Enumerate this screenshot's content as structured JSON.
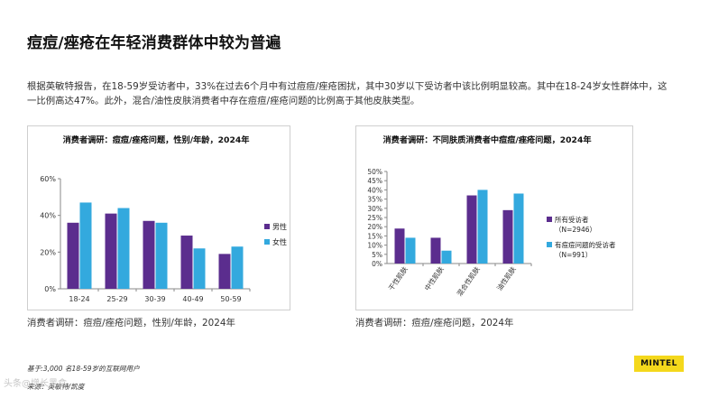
{
  "page": {
    "title": "痘痘/痤疮在年轻消费群体中较为普遍",
    "body": "根据英敏特报告，在18-59岁受访者中，33%在过去6个月中有过痘痘/痤疮困扰，其中30岁以下受访者中该比例明显较高。其中在18-24岁女性群体中，这一比例高达47%。此外，混合/油性皮肤消费者中存在痘痘/痤疮问题的比例高于其他皮肤类型。",
    "caption_left": "消费者调研：痘痘/痤疮问题，性别/年龄，2024年",
    "caption_right": "消费者调研：痘痘/痤疮问题，2024年",
    "base_note": "基于:3,000 名18-59岁的互联网用户",
    "source_note": "来源：英敏特/凯度",
    "logo_text": "MINTEL",
    "watermark": "头条@增长黑盒"
  },
  "colors": {
    "series_dark": "#5b2d8e",
    "series_light": "#33a9de",
    "logo_bg": "#f4d81c"
  },
  "chart_data": [
    {
      "type": "bar",
      "title": "消费者调研：痘痘/痤疮问题，性别/年龄，2024年",
      "categories": [
        "18-24",
        "25-29",
        "30-39",
        "40-49",
        "50-59"
      ],
      "series": [
        {
          "name": "男性",
          "values": [
            36,
            41,
            37,
            29,
            19
          ]
        },
        {
          "name": "女性",
          "values": [
            47,
            44,
            36,
            22,
            23
          ]
        }
      ],
      "yticks": [
        "0%",
        "20%",
        "40%",
        "60%"
      ],
      "ylim": [
        0,
        60
      ],
      "grid": false,
      "legend": "right"
    },
    {
      "type": "bar",
      "title": "消费者调研：不同肤质消费者中痘痘/痤疮问题，2024年",
      "categories": [
        "干性肌肤",
        "中性肌肤",
        "混合性肌肤",
        "油性肌肤"
      ],
      "series": [
        {
          "name": "所有受访者",
          "sub": "（N=2946）",
          "values": [
            19,
            14,
            37,
            29
          ]
        },
        {
          "name": "有痘痘问题的受访者",
          "sub": "（N=991）",
          "values": [
            14,
            7,
            40,
            38
          ]
        }
      ],
      "yticks": [
        "0%",
        "5%",
        "10%",
        "15%",
        "20%",
        "25%",
        "30%",
        "35%",
        "40%",
        "45%",
        "50%"
      ],
      "ylim": [
        0,
        50
      ],
      "grid": false,
      "legend": "right"
    }
  ]
}
